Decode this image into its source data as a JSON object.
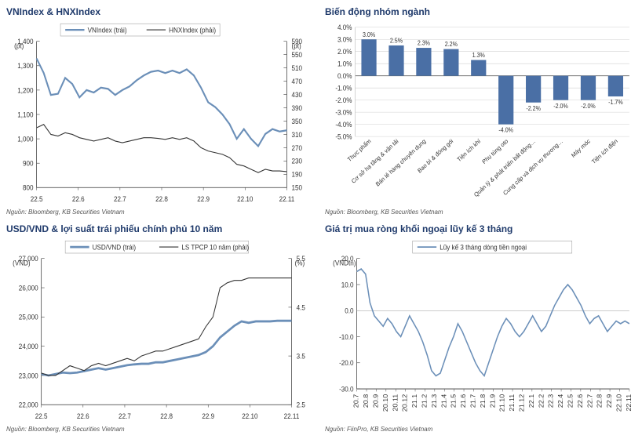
{
  "footer_text": "Nguồn: Bloomberg, KB Securities Vietnam",
  "footer_text_alt": "Nguồn: FiinPro, KB Securities Vietnam",
  "panel1": {
    "title": "VNIndex & HNXIndex",
    "type": "line",
    "left_unit": "(pt)",
    "right_unit": "(pt)",
    "x_labels": [
      "22.5",
      "22.6",
      "22.7",
      "22.8",
      "22.9",
      "22.10",
      "22.11"
    ],
    "left_axis": {
      "min": 800,
      "max": 1400,
      "step": 100
    },
    "right_axis": {
      "min": 150,
      "max": 590,
      "step": 40
    },
    "series": [
      {
        "name": "VNIndex (trái)",
        "color": "#6b8fb8",
        "width": 2,
        "y": [
          1330,
          1270,
          1180,
          1185,
          1250,
          1225,
          1170,
          1200,
          1190,
          1210,
          1205,
          1180,
          1200,
          1215,
          1240,
          1260,
          1275,
          1280,
          1270,
          1280,
          1270,
          1285,
          1260,
          1210,
          1150,
          1130,
          1100,
          1060,
          1000,
          1040,
          1000,
          970,
          1020,
          1040,
          1030,
          1035
        ]
      },
      {
        "name": "HNXIndex (phải)",
        "color": "#333333",
        "width": 1,
        "y": [
          330,
          340,
          310,
          305,
          315,
          310,
          300,
          295,
          290,
          295,
          300,
          290,
          285,
          290,
          295,
          300,
          300,
          298,
          295,
          300,
          295,
          300,
          290,
          270,
          260,
          255,
          250,
          240,
          220,
          215,
          205,
          195,
          205,
          200,
          200,
          198
        ]
      }
    ]
  },
  "panel2": {
    "title": "Biến động nhóm ngành",
    "type": "bar",
    "y_axis": {
      "min": -5.0,
      "max": 4.0,
      "step": 1.0
    },
    "bar_color": "#4a6fa5",
    "grid_color": "#d0d0d0",
    "categories": [
      "Thực phẩm",
      "Cơ sở hạ tầng & vận tải",
      "Bán lẻ hàng chuyên dụng",
      "Bao bì & đóng gói",
      "Tiện ích khí",
      "Phụ tùng oto",
      "Quản lý & phát triển bất động…",
      "Cung cấp và dịch vụ thương…",
      "Máy móc",
      "Tiện ích điện"
    ],
    "values": [
      3.0,
      2.5,
      2.3,
      2.2,
      1.3,
      -4.0,
      -2.2,
      -2.0,
      -2.0,
      -1.7
    ],
    "value_labels": [
      "3.0%",
      "2.5%",
      "2.3%",
      "2.2%",
      "1.3%",
      "-4.0%",
      "-2.2%",
      "-2.0%",
      "-2.0%",
      "-1.7%"
    ]
  },
  "panel3": {
    "title": "USD/VND & lợi suất trái phiếu chính phủ 10 năm",
    "type": "line",
    "left_unit": "(VND)",
    "right_unit": "(%)",
    "x_labels": [
      "22.5",
      "22.6",
      "22.7",
      "22.8",
      "22.9",
      "22.10",
      "22.11"
    ],
    "left_axis": {
      "min": 22000,
      "max": 27000,
      "step": 1000
    },
    "right_axis": {
      "min": 2.5,
      "max": 5.5,
      "step": 1.0
    },
    "series": [
      {
        "name": "USD/VND (trái)",
        "color": "#6b8fb8",
        "width": 2.5,
        "y": [
          23050,
          23000,
          23050,
          23100,
          23080,
          23100,
          23150,
          23200,
          23250,
          23200,
          23250,
          23300,
          23350,
          23380,
          23400,
          23400,
          23450,
          23450,
          23500,
          23550,
          23600,
          23650,
          23700,
          23800,
          24000,
          24300,
          24500,
          24700,
          24850,
          24800,
          24850,
          24850,
          24850,
          24870,
          24870,
          24870
        ]
      },
      {
        "name": "LS TPCP 10 năm (phải)",
        "color": "#333333",
        "width": 1,
        "y": [
          3.15,
          3.1,
          3.1,
          3.2,
          3.3,
          3.25,
          3.2,
          3.3,
          3.35,
          3.3,
          3.35,
          3.4,
          3.45,
          3.4,
          3.5,
          3.55,
          3.6,
          3.6,
          3.65,
          3.7,
          3.75,
          3.8,
          3.85,
          4.1,
          4.3,
          4.9,
          5.0,
          5.05,
          5.05,
          5.1,
          5.1,
          5.1,
          5.1,
          5.1,
          5.1,
          5.1
        ]
      }
    ]
  },
  "panel4": {
    "title": "Giá trị mua ròng khối ngoại lũy kế 3 tháng",
    "type": "line",
    "left_unit": "(VNDtn)",
    "x_labels": [
      "20.7",
      "20.8",
      "20.9",
      "20.10",
      "20.11",
      "20.12",
      "21.1",
      "21.2",
      "21.3",
      "21.4",
      "21.5",
      "21.6",
      "21.7",
      "21.8",
      "21.9",
      "21.10",
      "21.11",
      "21.12",
      "22.1",
      "22.2",
      "22.3",
      "22.4",
      "22.5",
      "22.6",
      "22.7",
      "22.8",
      "22.9",
      "22.10",
      "22.11"
    ],
    "y_axis": {
      "min": -30.0,
      "max": 20.0,
      "step": 10.0
    },
    "series": [
      {
        "name": "Lũy kế 3 tháng dòng tiền ngoại",
        "color": "#6b8fb8",
        "width": 1.5,
        "y": [
          15,
          16,
          14,
          3,
          -2,
          -4,
          -6,
          -3,
          -5,
          -8,
          -10,
          -6,
          -2,
          -5,
          -8,
          -12,
          -17,
          -23,
          -25,
          -24,
          -19,
          -14,
          -10,
          -5,
          -8,
          -12,
          -16,
          -20,
          -23,
          -25,
          -20,
          -15,
          -10,
          -6,
          -3,
          -5,
          -8,
          -10,
          -8,
          -5,
          -2,
          -5,
          -8,
          -6,
          -2,
          2,
          5,
          8,
          10,
          8,
          5,
          2,
          -2,
          -5,
          -3,
          -2,
          -5,
          -8,
          -6,
          -4,
          -5,
          -4,
          -5
        ]
      }
    ]
  }
}
